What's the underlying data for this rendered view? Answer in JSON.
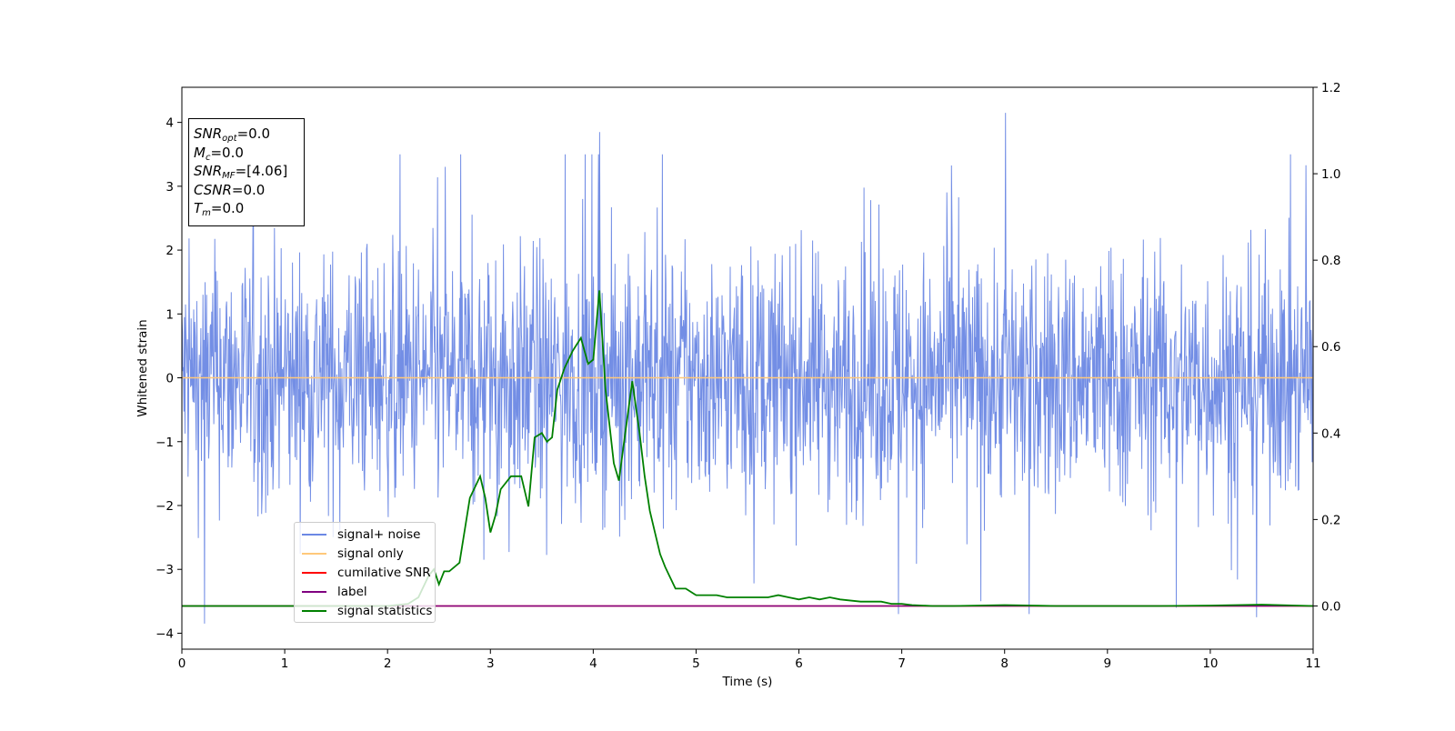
{
  "chart_data": {
    "type": "line",
    "xlabel": "Time (s)",
    "ylabel": "Whitened strain",
    "xlim": [
      0,
      11
    ],
    "ylim": [
      -4.25,
      4.55
    ],
    "y2lim": [
      -0.1,
      1.2
    ],
    "x_ticks": [
      0,
      1,
      2,
      3,
      4,
      5,
      6,
      7,
      8,
      9,
      10,
      11
    ],
    "y_ticks": [
      -4,
      -3,
      -2,
      -1,
      0,
      1,
      2,
      3,
      4
    ],
    "y2_ticks": [
      "0.0",
      "0.2",
      "0.4",
      "0.6",
      "0.8",
      "1.0",
      "1.2"
    ],
    "grid": false,
    "legend_position": "lower-left",
    "info_box": {
      "snr_opt": {
        "symbol": "SNR",
        "sub": "opt",
        "value": "=0.0"
      },
      "mc": {
        "symbol": "M",
        "sub": "c",
        "value": "=0.0"
      },
      "snr_mf": {
        "symbol": "SNR",
        "sub": "MF",
        "value": "=[4.06]"
      },
      "csnr": {
        "symbol": "CSNR",
        "value": "=0.0"
      },
      "tm": {
        "symbol": "T",
        "sub": "m",
        "value": "=0.0"
      }
    },
    "series": [
      {
        "name": "signal+ noise",
        "color": "#6b88e4",
        "axis": "left",
        "kind": "noise",
        "mean": 0.0,
        "envelope": {
          "typical_max": 2.6,
          "typical_min": -2.6,
          "peak_max": 4.15,
          "peak_min": -3.85
        },
        "notable_points": [
          [
            0.22,
            -3.85
          ],
          [
            4.06,
            3.85
          ],
          [
            8.01,
            4.15
          ],
          [
            8.24,
            -3.7
          ],
          [
            10.45,
            -3.75
          ],
          [
            9.67,
            -3.6
          ],
          [
            6.97,
            -3.7
          ]
        ]
      },
      {
        "name": "signal only",
        "color": "#ffc87a",
        "axis": "left",
        "x": [
          0,
          11
        ],
        "y": [
          0,
          0
        ]
      },
      {
        "name": "cumilative SNR",
        "color": "#ff0000",
        "axis": "right",
        "x": [
          0,
          11
        ],
        "y": [
          0,
          0
        ]
      },
      {
        "name": "label",
        "color": "#800080",
        "axis": "right",
        "x": [
          0,
          11
        ],
        "y": [
          0,
          0
        ]
      },
      {
        "name": "signal statistics",
        "color": "#008000",
        "axis": "right",
        "x": [
          0,
          0.5,
          1.0,
          1.5,
          2.0,
          2.2,
          2.3,
          2.4,
          2.45,
          2.5,
          2.55,
          2.6,
          2.7,
          2.8,
          2.9,
          2.95,
          3.0,
          3.05,
          3.1,
          3.2,
          3.3,
          3.37,
          3.43,
          3.5,
          3.55,
          3.6,
          3.65,
          3.72,
          3.8,
          3.88,
          3.95,
          4.0,
          4.06,
          4.12,
          4.2,
          4.25,
          4.3,
          4.38,
          4.45,
          4.5,
          4.55,
          4.6,
          4.65,
          4.7,
          4.8,
          4.9,
          5.0,
          5.1,
          5.2,
          5.3,
          5.5,
          5.7,
          5.8,
          5.9,
          6.0,
          6.1,
          6.2,
          6.3,
          6.4,
          6.6,
          6.8,
          6.9,
          7.0,
          7.1,
          7.3,
          7.5,
          8.0,
          8.5,
          9.0,
          9.5,
          10.0,
          10.5,
          11.0
        ],
        "y": [
          0.0,
          0.0,
          0.0,
          0.0,
          0.0,
          0.005,
          0.02,
          0.07,
          0.085,
          0.05,
          0.08,
          0.08,
          0.1,
          0.25,
          0.3,
          0.25,
          0.17,
          0.21,
          0.27,
          0.3,
          0.3,
          0.23,
          0.39,
          0.4,
          0.38,
          0.39,
          0.5,
          0.55,
          0.59,
          0.62,
          0.56,
          0.57,
          0.73,
          0.5,
          0.33,
          0.29,
          0.38,
          0.52,
          0.4,
          0.3,
          0.22,
          0.17,
          0.12,
          0.09,
          0.04,
          0.04,
          0.025,
          0.025,
          0.025,
          0.02,
          0.02,
          0.02,
          0.025,
          0.02,
          0.015,
          0.02,
          0.015,
          0.02,
          0.015,
          0.01,
          0.01,
          0.005,
          0.005,
          0.002,
          0.0,
          0.0,
          0.002,
          0.0,
          0.0,
          0.0,
          0.001,
          0.003,
          0.0
        ]
      }
    ]
  }
}
